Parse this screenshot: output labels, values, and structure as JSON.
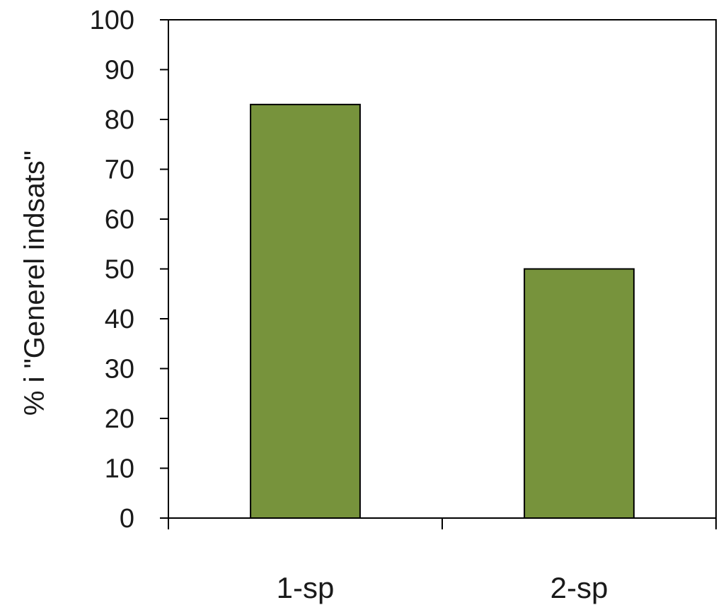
{
  "chart_data": {
    "type": "bar",
    "categories": [
      "1-sp",
      "2-sp"
    ],
    "values": [
      83,
      50
    ],
    "title": "",
    "xlabel": "",
    "ylabel": "% i \"Generel indsats\"",
    "ylim": [
      0,
      100
    ],
    "yticks": [
      0,
      10,
      20,
      30,
      40,
      50,
      60,
      70,
      80,
      90,
      100
    ],
    "grid": false,
    "legend": "none",
    "bar_color": "#77933c",
    "bar_edge_color": "#000000"
  }
}
